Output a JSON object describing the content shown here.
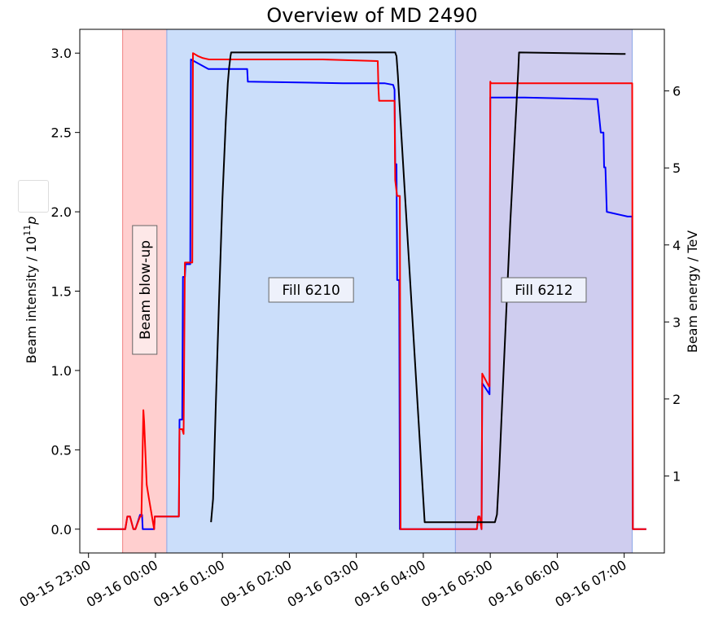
{
  "chart_data": {
    "type": "line",
    "title": "Overview of MD 2490",
    "ylabel_left": "Beam intensity / 10",
    "ylabel_left_sup": "11",
    "ylabel_left_tail": "p",
    "ylabel_right": "Beam energy / TeV",
    "x_unit": "hours since 09-16 00:00",
    "x_ticks": [
      {
        "v": -1,
        "label": "09-15 23:00"
      },
      {
        "v": 0,
        "label": "09-16 00:00"
      },
      {
        "v": 1,
        "label": "09-16 01:00"
      },
      {
        "v": 2,
        "label": "09-16 02:00"
      },
      {
        "v": 3,
        "label": "09-16 03:00"
      },
      {
        "v": 4,
        "label": "09-16 04:00"
      },
      {
        "v": 5,
        "label": "09-16 05:00"
      },
      {
        "v": 6,
        "label": "09-16 06:00"
      },
      {
        "v": 7,
        "label": "09-16 07:00"
      }
    ],
    "xlim": [
      -1.13,
      7.6
    ],
    "ylim_left": [
      -0.15,
      3.15
    ],
    "ylim_right": [
      0.0,
      6.8
    ],
    "yticks_left": [
      0.0,
      0.5,
      1.0,
      1.5,
      2.0,
      2.5,
      3.0
    ],
    "yticks_left_labels": [
      "0.0",
      "0.5",
      "1.0",
      "1.5",
      "2.0",
      "2.5",
      "3.0"
    ],
    "yticks_right": [
      1,
      2,
      3,
      4,
      5,
      6
    ],
    "yticks_right_labels": [
      "1",
      "2",
      "3",
      "4",
      "5",
      "6"
    ],
    "regions": [
      {
        "start": -0.49,
        "end": 0.17,
        "color": "#ffcccc",
        "label": "Beam blow-up",
        "vertical": true
      },
      {
        "start": 0.17,
        "end": 4.48,
        "color": "#c8dcfa",
        "label": "Fill 6210",
        "vertical": false
      },
      {
        "start": 4.48,
        "end": 7.12,
        "color": "#cccaee",
        "label": "Fill 6212",
        "vertical": false
      }
    ],
    "series": [
      {
        "axis": "left",
        "color": "#0000ff",
        "x": [
          -0.87,
          -0.45,
          -0.42,
          -0.38,
          -0.33,
          -0.3,
          -0.23,
          -0.2,
          -0.19,
          -0.15,
          -0.02,
          -0.01,
          0.03,
          0.07,
          0.35,
          0.36,
          0.4,
          0.41,
          0.44,
          0.45,
          0.52,
          0.53,
          0.79,
          1.37,
          1.38,
          2.8,
          3.42,
          3.55,
          3.57,
          3.58,
          3.6,
          3.61,
          3.64,
          3.65,
          4.01,
          4.8,
          4.82,
          4.84,
          4.87,
          4.88,
          4.99,
          5.0,
          5.51,
          6.6,
          6.65,
          6.69,
          6.7,
          6.72,
          6.74,
          7.05,
          7.06,
          7.12,
          7.13,
          7.33
        ],
        "y": [
          0.0,
          0.0,
          0.08,
          0.08,
          0.0,
          0.0,
          0.09,
          0.09,
          0.0,
          0.0,
          0.0,
          0.08,
          0.08,
          0.08,
          0.08,
          0.69,
          0.69,
          1.59,
          1.59,
          1.67,
          1.67,
          2.96,
          2.9,
          2.9,
          2.82,
          2.81,
          2.81,
          2.8,
          2.77,
          2.3,
          2.3,
          1.57,
          1.57,
          0.0,
          0.0,
          0.0,
          0.08,
          0.08,
          0.0,
          0.92,
          0.85,
          2.72,
          2.72,
          2.71,
          2.5,
          2.5,
          2.28,
          2.28,
          2.0,
          1.97,
          1.97,
          1.97,
          0.0,
          0.0
        ]
      },
      {
        "axis": "left",
        "color": "#ff0000",
        "x": [
          -0.87,
          -0.45,
          -0.42,
          -0.38,
          -0.33,
          -0.3,
          -0.23,
          -0.21,
          -0.18,
          -0.17,
          -0.13,
          -0.1,
          -0.02,
          -0.01,
          0.04,
          0.07,
          0.35,
          0.36,
          0.4,
          0.42,
          0.44,
          0.45,
          0.55,
          0.56,
          0.64,
          0.7,
          0.8,
          1.1,
          2.5,
          3.32,
          3.33,
          3.34,
          3.57,
          3.58,
          3.6,
          3.61,
          3.65,
          3.66,
          4.02,
          4.8,
          4.82,
          4.84,
          4.87,
          4.88,
          4.98,
          4.99,
          5.0,
          5.01,
          7.12,
          7.13,
          7.33
        ],
        "y": [
          0.0,
          0.0,
          0.08,
          0.08,
          0.0,
          0.0,
          0.08,
          0.08,
          0.75,
          0.68,
          0.28,
          0.2,
          0.0,
          0.08,
          0.08,
          0.08,
          0.08,
          0.63,
          0.63,
          0.6,
          1.68,
          1.68,
          1.68,
          3.0,
          2.98,
          2.97,
          2.96,
          2.96,
          2.96,
          2.95,
          2.78,
          2.7,
          2.7,
          2.2,
          2.13,
          2.1,
          2.1,
          0.0,
          0.0,
          0.0,
          0.08,
          0.08,
          0.0,
          0.98,
          0.9,
          0.9,
          2.82,
          2.81,
          2.81,
          0.0,
          0.0
        ]
      },
      {
        "axis": "right",
        "color": "#000000",
        "x": [
          0.83,
          0.86,
          0.9,
          0.95,
          1.0,
          1.05,
          1.08,
          1.1,
          1.12,
          1.13,
          1.14,
          3.58,
          3.6,
          3.62,
          3.64,
          3.66,
          4.02,
          4.05,
          4.1,
          5.07,
          5.1,
          5.13,
          5.18,
          5.3,
          5.42,
          5.43,
          7.02
        ],
        "y": [
          0.4,
          0.7,
          1.9,
          3.3,
          4.6,
          5.6,
          6.1,
          6.3,
          6.45,
          6.5,
          6.5,
          6.5,
          6.45,
          6.2,
          5.9,
          5.6,
          0.4,
          0.4,
          0.4,
          0.4,
          0.5,
          1.0,
          2.0,
          4.3,
          6.3,
          6.5,
          6.48
        ]
      }
    ]
  }
}
